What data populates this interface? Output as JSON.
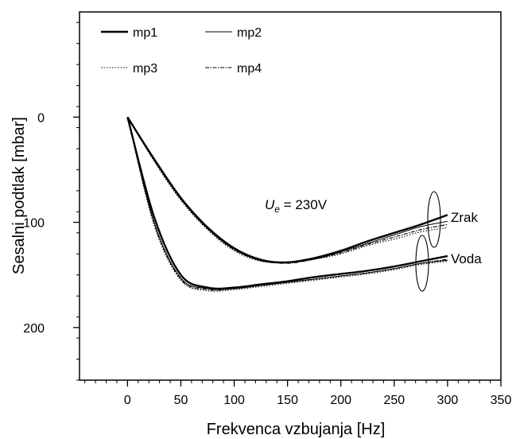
{
  "chart_data": {
    "type": "line",
    "title": "",
    "xlabel": "Frekvenca vzbujanja [Hz]",
    "ylabel": "Sesalni podtlak [mbar]",
    "xlim": [
      -45,
      350
    ],
    "ylim": [
      250,
      -100
    ],
    "y_inverted": true,
    "x_ticks": [
      0,
      50,
      100,
      150,
      200,
      250,
      300,
      350
    ],
    "y_ticks": [
      0,
      100,
      200
    ],
    "grid": false,
    "legend_position": "top-left",
    "annotation": {
      "var": "U",
      "sub": "e",
      "rest": " = 230V"
    },
    "group_labels": [
      "Zrak",
      "Voda"
    ],
    "series": [
      {
        "name": "mp1",
        "group": "Zrak",
        "style": "thick",
        "x": [
          0,
          25,
          50,
          75,
          100,
          125,
          150,
          175,
          200,
          225,
          250,
          275,
          300
        ],
        "y": [
          0,
          40,
          77,
          105,
          125,
          136,
          138,
          134,
          127,
          118,
          110,
          102,
          93
        ]
      },
      {
        "name": "mp2",
        "group": "Zrak",
        "style": "thin",
        "x": [
          0,
          25,
          50,
          75,
          100,
          125,
          150,
          175,
          200,
          225,
          250,
          275,
          300
        ],
        "y": [
          0,
          39,
          76,
          104,
          124,
          135,
          138,
          135,
          128,
          120,
          112,
          104,
          99
        ]
      },
      {
        "name": "mp3",
        "group": "Zrak",
        "style": "dotted",
        "x": [
          0,
          25,
          50,
          75,
          100,
          125,
          150,
          175,
          200,
          225,
          250,
          275,
          300
        ],
        "y": [
          0,
          42,
          79,
          107,
          127,
          137,
          138,
          135,
          130,
          122,
          116,
          109,
          105
        ]
      },
      {
        "name": "mp4",
        "group": "Zrak",
        "style": "dashdot",
        "x": [
          0,
          25,
          50,
          75,
          100,
          125,
          150,
          175,
          200,
          225,
          250,
          275,
          300
        ],
        "y": [
          0,
          41,
          78,
          106,
          126,
          136,
          139,
          135,
          129,
          121,
          114,
          107,
          102
        ]
      },
      {
        "name": "mp1",
        "group": "Voda",
        "style": "thick",
        "x": [
          0,
          25,
          50,
          75,
          100,
          125,
          150,
          175,
          200,
          225,
          250,
          275,
          300
        ],
        "y": [
          0,
          95,
          150,
          162,
          162,
          159,
          156,
          152,
          149,
          146,
          142,
          137,
          132
        ]
      },
      {
        "name": "mp2",
        "group": "Voda",
        "style": "thin",
        "x": [
          0,
          25,
          50,
          75,
          100,
          125,
          150,
          175,
          200,
          225,
          250,
          275,
          300
        ],
        "y": [
          0,
          100,
          153,
          163,
          163,
          160,
          157,
          154,
          151,
          148,
          144,
          139,
          136
        ]
      },
      {
        "name": "mp3",
        "group": "Voda",
        "style": "dotted",
        "x": [
          0,
          25,
          50,
          75,
          100,
          125,
          150,
          175,
          200,
          225,
          250,
          275,
          300
        ],
        "y": [
          0,
          103,
          155,
          165,
          164,
          161,
          158,
          155,
          152,
          149,
          145,
          140,
          137
        ]
      },
      {
        "name": "mp4",
        "group": "Voda",
        "style": "dashdot",
        "x": [
          0,
          25,
          50,
          75,
          100,
          125,
          150,
          175,
          200,
          225,
          250,
          275,
          300
        ],
        "y": [
          0,
          101,
          154,
          164,
          163,
          160,
          157,
          154,
          151,
          148,
          144,
          139,
          135
        ]
      }
    ],
    "legend": [
      {
        "name": "mp1",
        "style": "thick"
      },
      {
        "name": "mp2",
        "style": "thin"
      },
      {
        "name": "mp3",
        "style": "dotted"
      },
      {
        "name": "mp4",
        "style": "dashdot"
      }
    ]
  }
}
